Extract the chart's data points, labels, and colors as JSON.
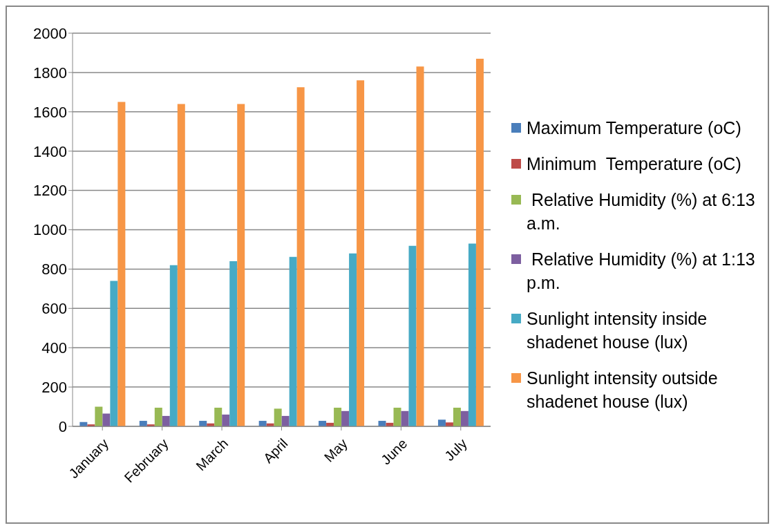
{
  "chart_data": {
    "type": "bar",
    "categories": [
      "January",
      "February",
      "March",
      "April",
      "May",
      "June",
      "July"
    ],
    "series": [
      {
        "name": "Maximum Temperature (oC)",
        "color": "#4a7ebb",
        "values": [
          22,
          28,
          28,
          28,
          28,
          28,
          34
        ]
      },
      {
        "name": "Minimum  Temperature (oC)",
        "color": "#be4b48",
        "values": [
          10,
          10,
          15,
          15,
          18,
          18,
          20
        ]
      },
      {
        "name": " Relative Humidity (%) at 6:13 a.m.",
        "color": "#98b954",
        "values": [
          100,
          95,
          95,
          90,
          95,
          95,
          95
        ]
      },
      {
        "name": " Relative Humidity (%) at 1:13 p.m.",
        "color": "#7d5fa0",
        "values": [
          65,
          53,
          60,
          53,
          78,
          78,
          78
        ]
      },
      {
        "name": "Sunlight intensity inside shadenet house (lux)",
        "color": "#46aac5",
        "values": [
          740,
          820,
          840,
          862,
          880,
          918,
          930
        ]
      },
      {
        "name": "Sunlight intensity outside shadenet house (lux)",
        "color": "#f79646",
        "values": [
          1650,
          1640,
          1640,
          1725,
          1760,
          1830,
          1870
        ]
      }
    ],
    "ylim": [
      0,
      2000
    ],
    "yticks": [
      0,
      200,
      400,
      600,
      800,
      1000,
      1200,
      1400,
      1600,
      1800,
      2000
    ],
    "grid": "y",
    "legend": "right"
  }
}
